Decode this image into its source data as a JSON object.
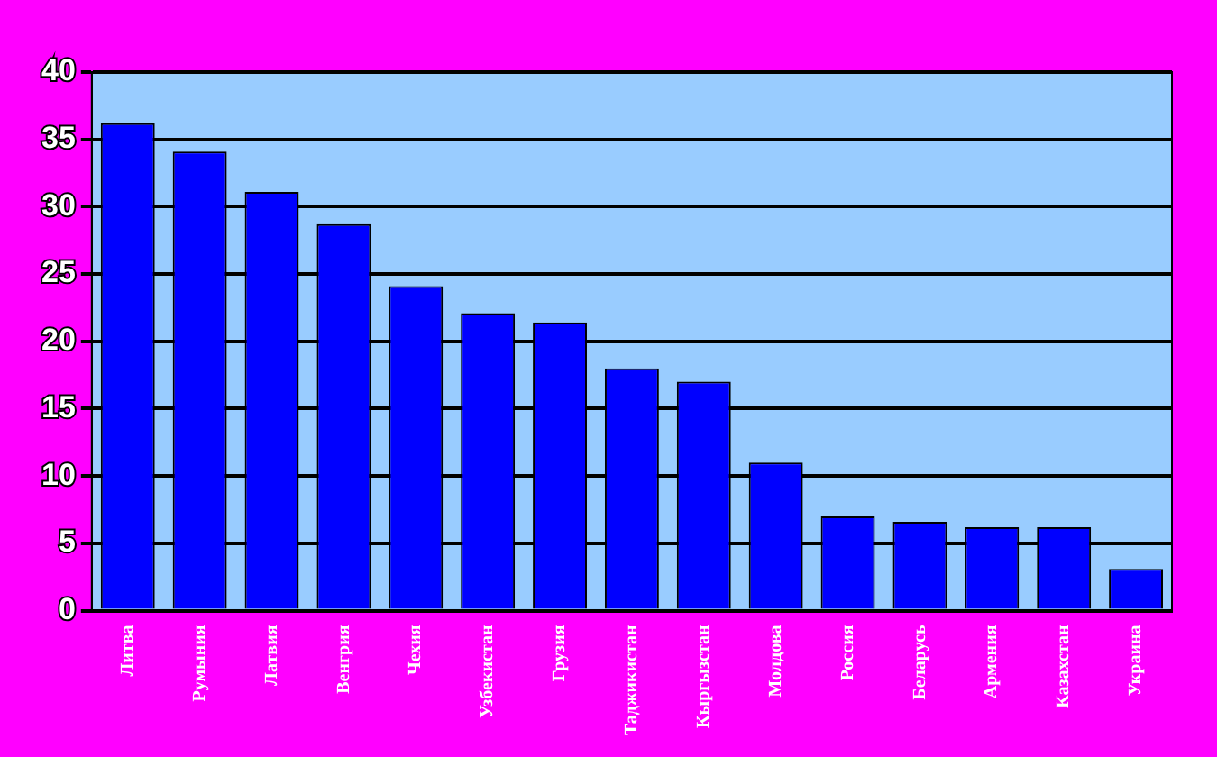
{
  "chart_data": {
    "type": "bar",
    "categories": [
      "Литва",
      "Румыния",
      "Латвия",
      "Венгрия",
      "Чехия",
      "Узбекистан",
      "Грузия",
      "Таджикистан",
      "Кыргызстан",
      "Молдова",
      "Россия",
      "Беларусь",
      "Армения",
      "Казахстан",
      "Украина"
    ],
    "values": [
      36.2,
      34.1,
      31.1,
      28.7,
      24.1,
      22.1,
      21.4,
      18,
      17,
      11,
      7,
      6.6,
      6.2,
      6.2,
      3.1
    ],
    "color": "#0000ff",
    "ylim": [
      0,
      40
    ],
    "yticks": [
      0,
      5,
      10,
      15,
      20,
      25,
      30,
      35,
      40
    ],
    "grid": "y",
    "legend": false
  }
}
